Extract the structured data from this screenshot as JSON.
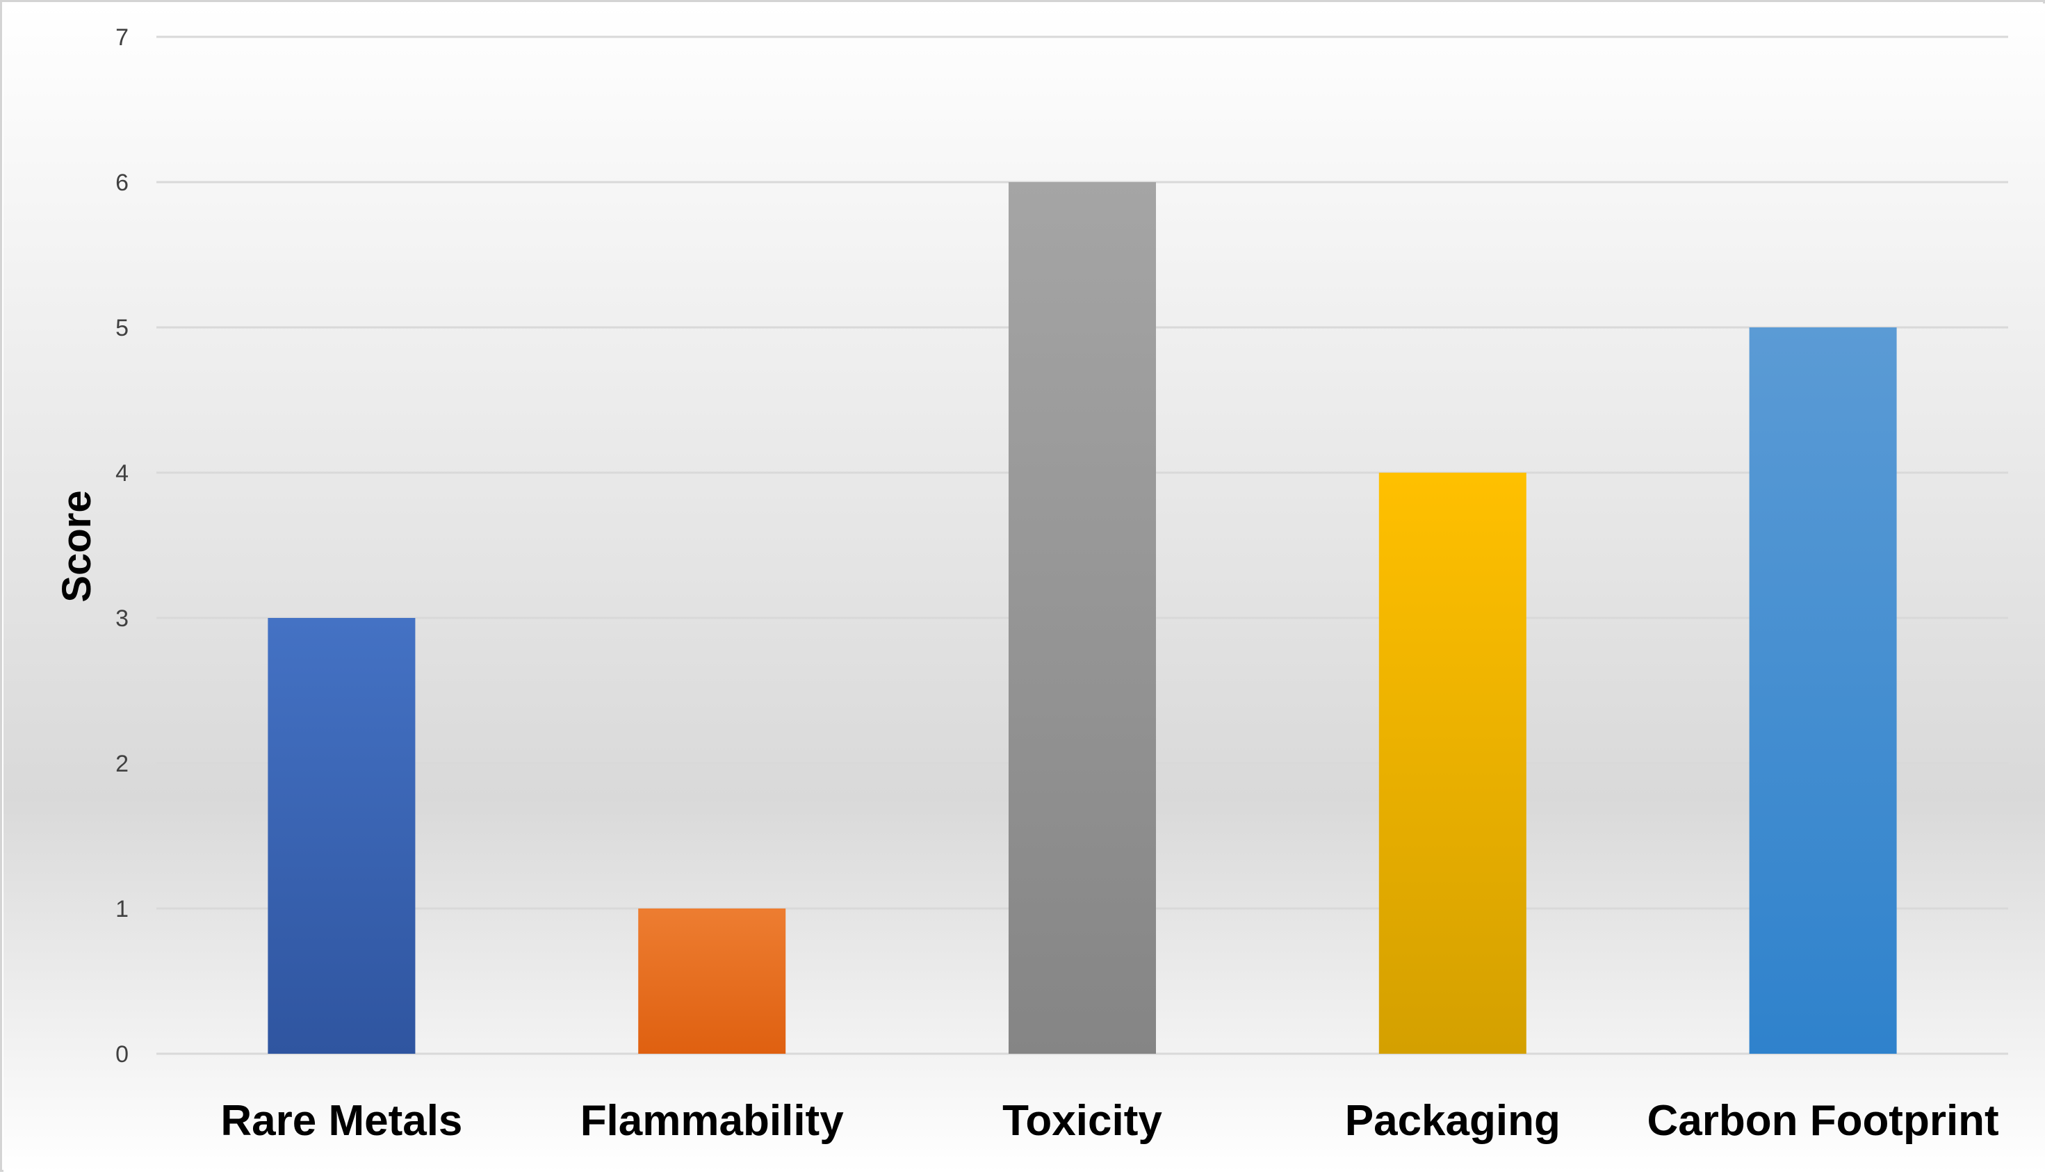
{
  "chart_data": {
    "type": "bar",
    "title": "",
    "xlabel": "",
    "ylabel": "Score",
    "ylim": [
      0,
      7
    ],
    "yticks": [
      0,
      1,
      2,
      3,
      4,
      5,
      6,
      7
    ],
    "grid": true,
    "legend": "none",
    "categories": [
      "Rare Metals",
      "Flammability",
      "Toxicity",
      "Packaging",
      "Carbon Footprint"
    ],
    "values": [
      3,
      1,
      6,
      4,
      5
    ],
    "colors": [
      {
        "top": "#4472c4",
        "bottom": "#2f55a0"
      },
      {
        "top": "#ed7d31",
        "bottom": "#df6010"
      },
      {
        "top": "#a5a5a5",
        "bottom": "#858585"
      },
      {
        "top": "#ffc000",
        "bottom": "#d4a000"
      },
      {
        "top": "#5b9bd5",
        "bottom": "#2f82cc"
      }
    ],
    "background": {
      "top": "#ffffff",
      "middle": "#d9d9d9",
      "bottom": "#ffffff"
    },
    "gridline_color": "#d9d9d9"
  }
}
